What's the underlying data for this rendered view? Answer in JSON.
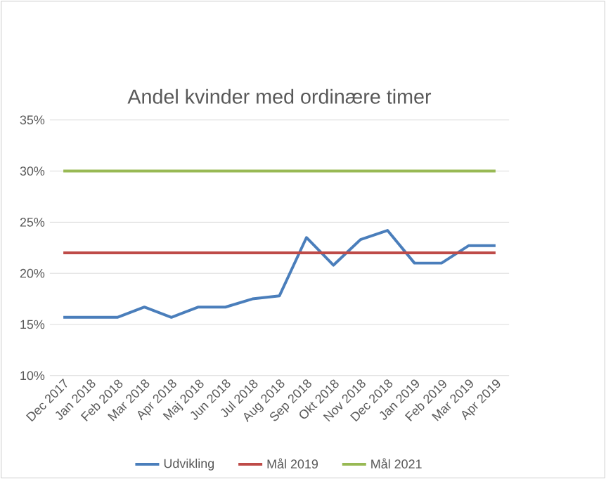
{
  "chart_data": {
    "type": "line",
    "title": "Andel kvinder med ordinære timer",
    "categories": [
      "Dec 2017",
      "Jan 2018",
      "Feb 2018",
      "Mar 2018",
      "Apr 2018",
      "Maj 2018",
      "Jun 2018",
      "Jul 2018",
      "Aug 2018",
      "Sep 2018",
      "Okt 2018",
      "Nov 2018",
      "Dec 2018",
      "Jan 2019",
      "Feb 2019",
      "Mar 2019",
      "Apr 2019"
    ],
    "series": [
      {
        "name": "Udvikling",
        "color": "#4a7ebb",
        "values": [
          15.7,
          15.7,
          15.7,
          16.7,
          15.7,
          16.7,
          16.7,
          17.5,
          17.8,
          23.5,
          20.8,
          23.3,
          24.2,
          21.0,
          21.0,
          22.7,
          22.7
        ]
      },
      {
        "name": "Mål 2019",
        "color": "#be4b48",
        "values": [
          22,
          22,
          22,
          22,
          22,
          22,
          22,
          22,
          22,
          22,
          22,
          22,
          22,
          22,
          22,
          22,
          22
        ]
      },
      {
        "name": "Mål 2021",
        "color": "#98b954",
        "values": [
          30,
          30,
          30,
          30,
          30,
          30,
          30,
          30,
          30,
          30,
          30,
          30,
          30,
          30,
          30,
          30,
          30
        ]
      }
    ],
    "ylim": [
      10,
      35
    ],
    "yticks": [
      {
        "value": 10,
        "label": "10%"
      },
      {
        "value": 15,
        "label": "15%"
      },
      {
        "value": 20,
        "label": "20%"
      },
      {
        "value": 25,
        "label": "25%"
      },
      {
        "value": 30,
        "label": "30%"
      },
      {
        "value": 35,
        "label": "35%"
      }
    ],
    "grid": "y",
    "legend": "bottom",
    "marker": "none",
    "line_style": "solid"
  }
}
